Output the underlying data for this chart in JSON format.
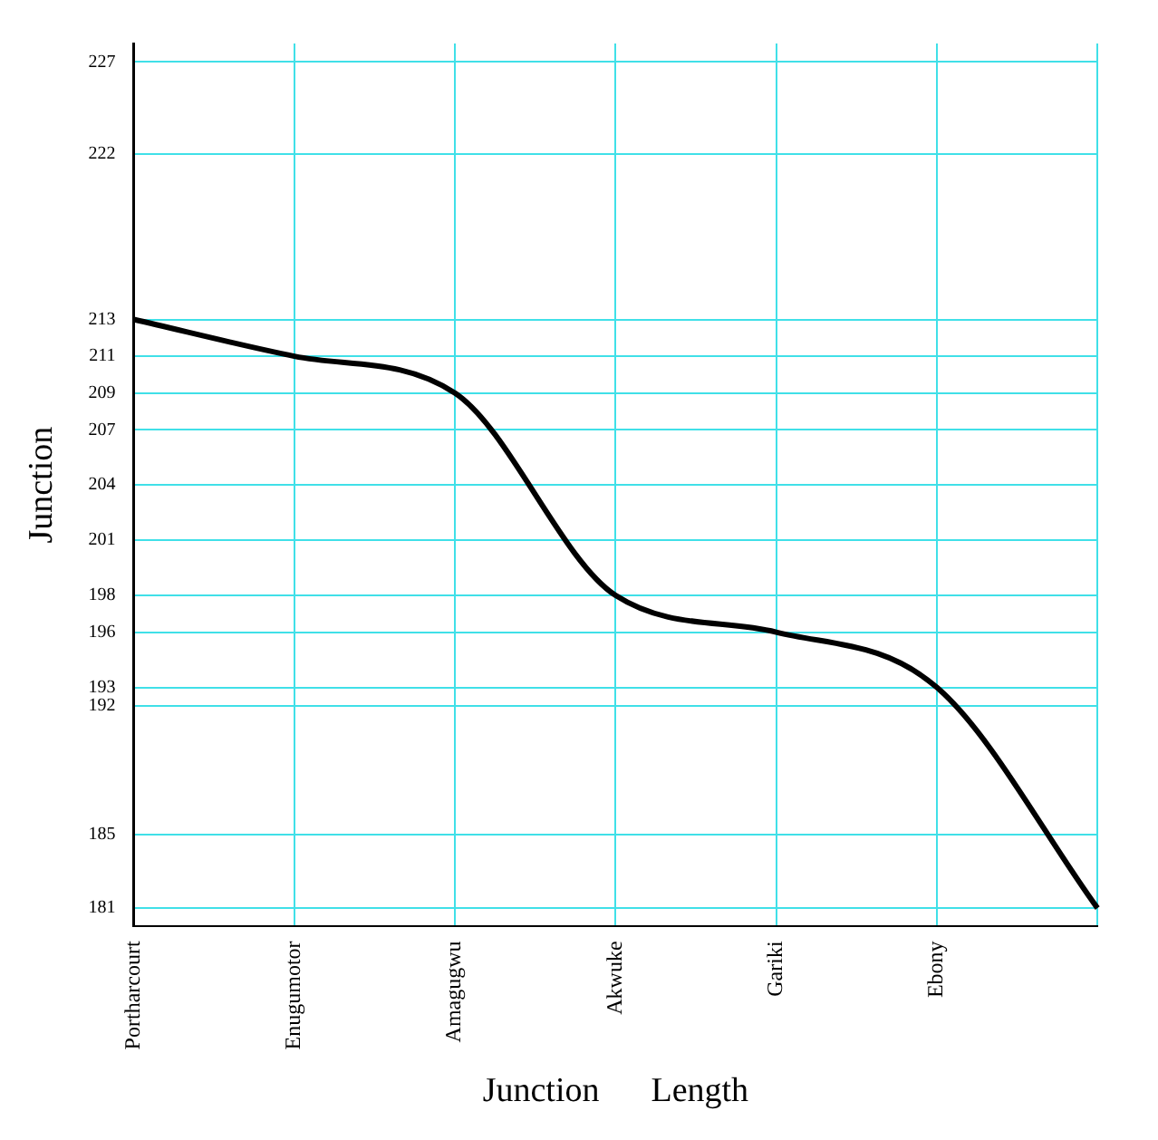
{
  "chart_data": {
    "type": "line",
    "xlabel": "Junction      Length",
    "ylabel": "Junction",
    "categories": [
      "Portharcourt",
      "Enugumotor",
      "Amagugwu",
      "Akwuke",
      "Gariki",
      "Ebony",
      null
    ],
    "series": [
      {
        "color": "#000000",
        "values": [
          213,
          211,
          209,
          198,
          196,
          193,
          181
        ]
      }
    ],
    "ylim": [
      180,
      228
    ],
    "yticks": [
      227,
      222,
      213,
      211,
      209,
      207,
      204,
      201,
      198,
      196,
      193,
      192,
      185,
      181
    ],
    "grid": true,
    "marker": "none",
    "line_style": "solid",
    "legend": false
  }
}
